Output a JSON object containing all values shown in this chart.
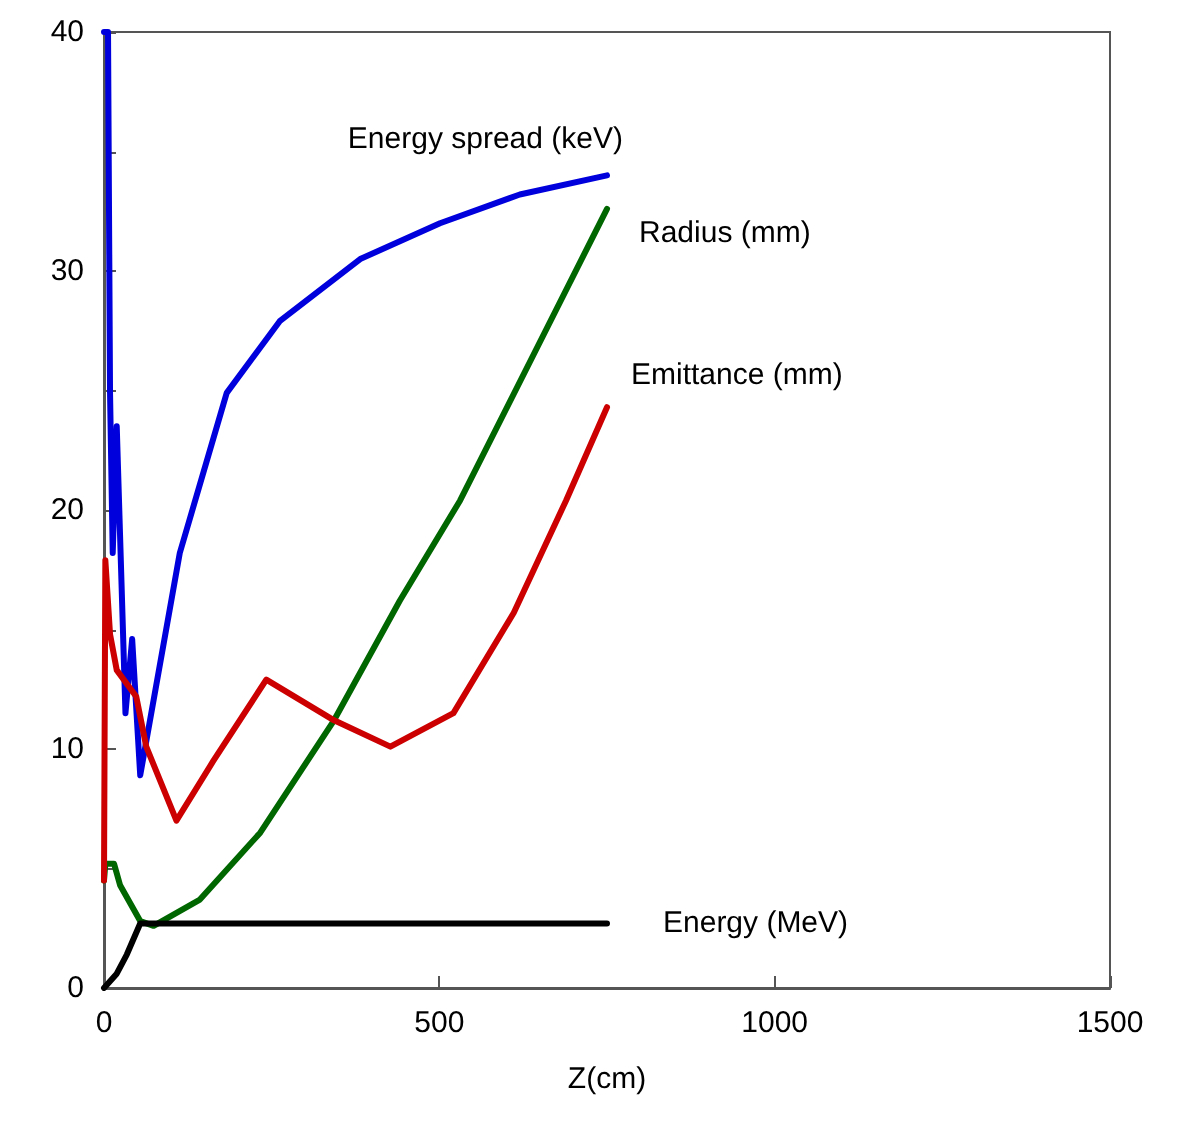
{
  "chart_data": {
    "type": "line",
    "xlabel": "Z(cm)",
    "xlim": [
      0,
      1500
    ],
    "xticks": [
      0,
      500,
      1000,
      1500
    ],
    "ylim": [
      0,
      40
    ],
    "yticks": [
      0,
      {
        "value": 5,
        "label": null
      },
      10,
      {
        "value": 15,
        "label": null
      },
      20,
      {
        "value": 25,
        "label": null
      },
      30,
      {
        "value": 35,
        "label": null
      },
      40
    ],
    "grid": false,
    "legend": false,
    "marker": "none",
    "line_style": "solid",
    "series": [
      {
        "name": "Energy spread (keV)",
        "color": "#0000dd",
        "x": [
          0,
          6,
          9,
          13,
          19,
          32,
          42,
          54,
          113,
          183,
          262,
          382,
          501,
          620,
          750
        ],
        "values": [
          40,
          40,
          24.9,
          18.2,
          23.5,
          11.5,
          14.6,
          8.9,
          18.2,
          24.9,
          27.9,
          30.5,
          32.0,
          33.2,
          34.0
        ]
      },
      {
        "name": "Radius (mm)",
        "color": "#006600",
        "x": [
          0,
          2,
          15,
          24,
          54,
          74,
          143,
          233,
          343,
          441,
          531,
          750
        ],
        "values": [
          4.5,
          5.2,
          5.2,
          4.3,
          2.8,
          2.6,
          3.7,
          6.5,
          11.2,
          16.2,
          20.4,
          32.6
        ]
      },
      {
        "name": "Emittance (mm)",
        "color": "#cc0000",
        "x": [
          0,
          2,
          9,
          19,
          48,
          63,
          108,
          163,
          242,
          343,
          427,
          521,
          611,
          689,
          750
        ],
        "values": [
          4.5,
          17.9,
          14.8,
          13.3,
          12.2,
          10.1,
          7.0,
          9.5,
          12.9,
          11.2,
          10.1,
          11.5,
          15.7,
          20.4,
          24.3
        ]
      },
      {
        "name": "Energy (MeV)",
        "color": "#000000",
        "x": [
          0,
          19,
          34,
          54,
          750
        ],
        "values": [
          0,
          0.6,
          1.4,
          2.7,
          2.7
        ]
      }
    ]
  }
}
